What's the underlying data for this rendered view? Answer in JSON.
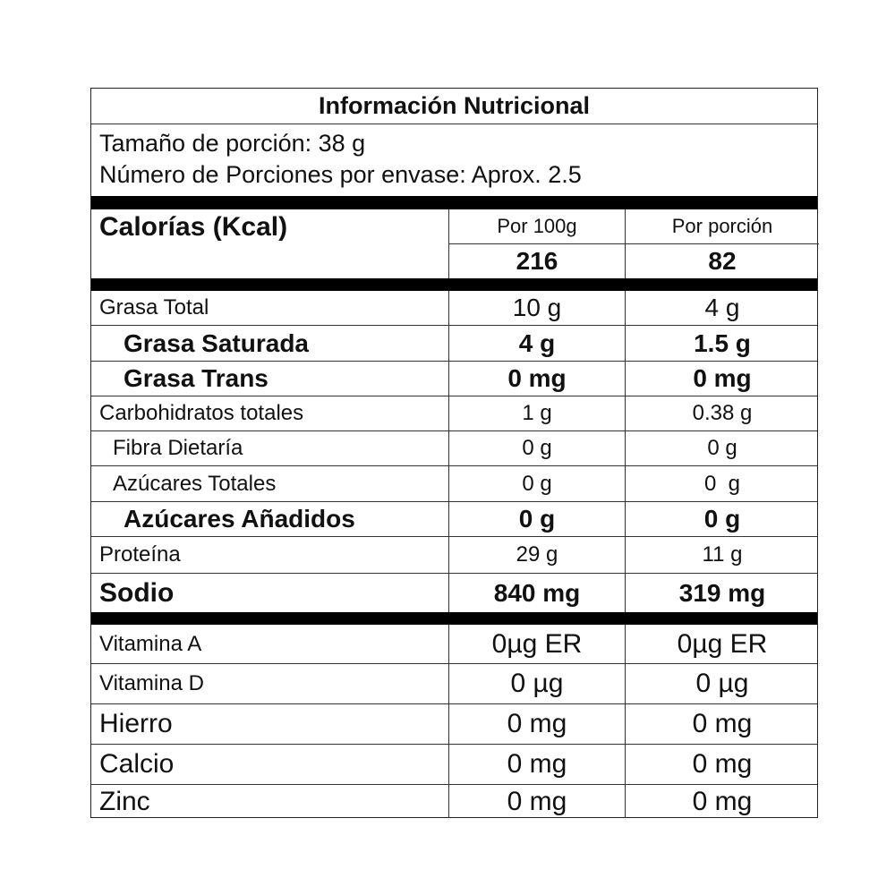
{
  "title": "Información Nutricional",
  "serving_size": "Tamaño de porción: 38 g",
  "servings_per_container": "Número de Porciones por envase: Aprox. 2.5",
  "calories": {
    "label": "Calorías (Kcal)",
    "col1_header": "Por 100g",
    "col2_header": "Por porción",
    "per_100g": "216",
    "per_serving": "82"
  },
  "nutrients": [
    {
      "name": "Grasa Total",
      "per_100g": "10 g",
      "per_serving": "4 g"
    },
    {
      "name": "Grasa Saturada",
      "per_100g": "4 g",
      "per_serving": "1.5 g"
    },
    {
      "name": "Grasa Trans",
      "per_100g": "0 mg",
      "per_serving": "0 mg"
    },
    {
      "name": "Carbohidratos totales",
      "per_100g": "1 g",
      "per_serving": "0.38 g"
    },
    {
      "name": "Fibra Dietaría",
      "per_100g": "0 g",
      "per_serving": "0 g"
    },
    {
      "name": "Azúcares Totales",
      "per_100g": "0 g",
      "per_serving": "0  g"
    },
    {
      "name": "Azúcares Añadidos",
      "per_100g": "0 g",
      "per_serving": "0 g"
    },
    {
      "name": "Proteína",
      "per_100g": "29 g",
      "per_serving": "11 g"
    },
    {
      "name": "Sodio",
      "per_100g": "840 mg",
      "per_serving": "319 mg"
    }
  ],
  "micronutrients": [
    {
      "name": "Vitamina A",
      "per_100g": "0µg ER",
      "per_serving": "0µg ER"
    },
    {
      "name": "Vitamina D",
      "per_100g": "0 µg",
      "per_serving": "0 µg"
    },
    {
      "name": "Hierro",
      "per_100g": "0 mg",
      "per_serving": "0 mg"
    },
    {
      "name": "Calcio",
      "per_100g": "0 mg",
      "per_serving": "0 mg"
    },
    {
      "name": "Zinc",
      "per_100g": "0 mg",
      "per_serving": "0 mg"
    }
  ]
}
